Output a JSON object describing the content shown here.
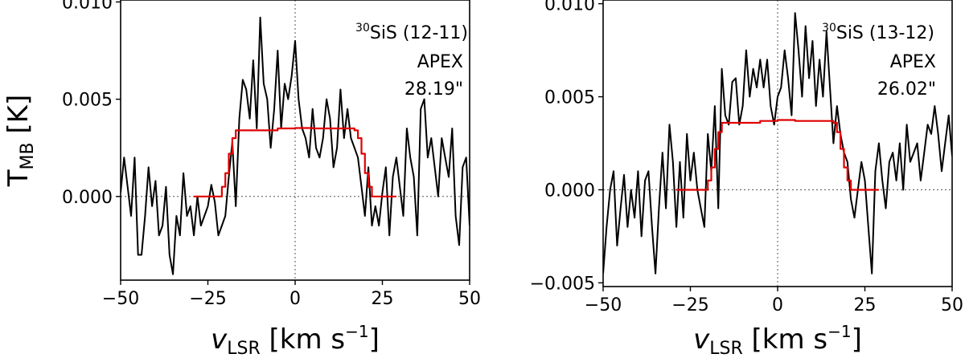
{
  "chart_data": [
    {
      "type": "line",
      "annotation": {
        "isotope": "30",
        "molecule": "SiS (12-11)",
        "telescope": "APEX",
        "beam": "28.19\""
      },
      "xlabel": {
        "main": "v",
        "sub": "LSR",
        "unit": " [km s",
        "exp": "−1",
        "close": "]"
      },
      "ylabel": {
        "main": "T",
        "sub": "MB",
        "unit": " [K]"
      },
      "xlim": [
        -50,
        50
      ],
      "ylim": [
        -0.0043,
        0.0101
      ],
      "xticks": [
        -50,
        -25,
        0,
        25,
        50
      ],
      "xtick_labels": [
        "−50",
        "−25",
        "0",
        "25",
        "50"
      ],
      "yticks": [
        0.0,
        0.005,
        0.01
      ],
      "ytick_labels": [
        "0.000",
        "0.005",
        "0.010"
      ],
      "ref_x": 0,
      "ref_y": 0,
      "series": [
        {
          "color": "#000000",
          "style": "spectrum",
          "x": [
            -50,
            -49,
            -48,
            -47,
            -46,
            -45,
            -44,
            -43,
            -42,
            -41,
            -40,
            -39,
            -38,
            -37,
            -36,
            -35,
            -34,
            -33,
            -32,
            -31,
            -30,
            -29,
            -28,
            -27,
            -26,
            -25,
            -24,
            -23,
            -22,
            -21,
            -20,
            -19,
            -18,
            -17,
            -16,
            -15,
            -14,
            -13,
            -12,
            -11,
            -10,
            -9,
            -8,
            -7,
            -6,
            -5,
            -4,
            -3,
            -2,
            -1,
            0,
            1,
            2,
            3,
            4,
            5,
            6,
            7,
            8,
            9,
            10,
            11,
            12,
            13,
            14,
            15,
            16,
            17,
            18,
            19,
            20,
            21,
            22,
            23,
            24,
            25,
            26,
            27,
            28,
            29,
            30,
            31,
            32,
            33,
            34,
            35,
            36,
            37,
            38,
            39,
            40,
            41,
            42,
            43,
            44,
            45,
            46,
            47,
            48,
            49,
            50
          ],
          "y": [
            0.0002,
            0.002,
            0.0005,
            -0.001,
            0.002,
            -0.003,
            -0.003,
            -0.001,
            0.0015,
            -0.0005,
            0.0008,
            -0.002,
            -0.0015,
            0.0005,
            -0.003,
            -0.004,
            -0.001,
            -0.002,
            0.0012,
            -0.001,
            -0.0005,
            -0.002,
            0.0,
            -0.0015,
            -0.001,
            -0.0005,
            0.0006,
            -0.0003,
            -0.002,
            -0.0015,
            -0.001,
            0.001,
            0.0028,
            -0.0005,
            0.004,
            0.006,
            0.0055,
            0.004,
            0.007,
            0.0035,
            0.0092,
            0.0058,
            0.005,
            0.0025,
            0.0045,
            0.0075,
            0.0035,
            0.0058,
            0.005,
            0.0062,
            0.008,
            0.005,
            0.0035,
            0.003,
            0.002,
            0.0045,
            0.0025,
            0.002,
            0.003,
            0.005,
            0.004,
            0.0015,
            0.0025,
            0.0055,
            0.003,
            0.0045,
            0.003,
            0.0025,
            0.002,
            0.0005,
            -0.001,
            0.0015,
            -0.0015,
            -0.0005,
            -0.0015,
            0.0002,
            0.0015,
            -0.002,
            0.001,
            0.002,
            0.0005,
            -0.001,
            0.0035,
            0.002,
            0.001,
            -0.002,
            0.0045,
            0.005,
            0.002,
            0.003,
            0.0015,
            0.0,
            0.003,
            0.002,
            0.001,
            0.0035,
            -0.001,
            -0.0025,
            0.0015,
            0.002,
            -0.0015
          ]
        },
        {
          "color": "#e00000",
          "style": "step",
          "x": [
            -29,
            -22,
            -21,
            -20,
            -19,
            -18,
            -17,
            -5,
            0,
            5,
            17,
            18,
            19,
            20,
            21,
            22,
            29
          ],
          "y": [
            0.0,
            0.0,
            0.0005,
            0.0012,
            0.0022,
            0.003,
            0.0034,
            0.0035,
            0.00352,
            0.0035,
            0.0034,
            0.003,
            0.0022,
            0.0012,
            0.0005,
            0.0,
            0.0
          ]
        }
      ]
    },
    {
      "type": "line",
      "annotation": {
        "isotope": "30",
        "molecule": "SiS (13-12)",
        "telescope": "APEX",
        "beam": "26.02\""
      },
      "xlabel": {
        "main": "v",
        "sub": "LSR",
        "unit": " [km s",
        "exp": "−1",
        "close": "]"
      },
      "ylabel": {
        "main": "",
        "sub": "",
        "unit": ""
      },
      "xlim": [
        -50,
        50
      ],
      "ylim": [
        -0.0052,
        0.0102
      ],
      "xticks": [
        -50,
        -25,
        0,
        25,
        50
      ],
      "xtick_labels": [
        "−50",
        "−25",
        "0",
        "25",
        "50"
      ],
      "yticks": [
        -0.005,
        0.0,
        0.005,
        0.01
      ],
      "ytick_labels": [
        "−0.005",
        "0.000",
        "0.005",
        "0.010"
      ],
      "ref_x": 0,
      "ref_y": 0,
      "series": [
        {
          "color": "#000000",
          "style": "spectrum",
          "x": [
            -50,
            -49,
            -48,
            -47,
            -46,
            -45,
            -44,
            -43,
            -42,
            -41,
            -40,
            -39,
            -38,
            -37,
            -36,
            -35,
            -34,
            -33,
            -32,
            -31,
            -30,
            -29,
            -28,
            -27,
            -26,
            -25,
            -24,
            -23,
            -22,
            -21,
            -20,
            -19,
            -18,
            -17,
            -16,
            -15,
            -14,
            -13,
            -12,
            -11,
            -10,
            -9,
            -8,
            -7,
            -6,
            -5,
            -4,
            -3,
            -2,
            -1,
            0,
            1,
            2,
            3,
            4,
            5,
            6,
            7,
            8,
            9,
            10,
            11,
            12,
            13,
            14,
            15,
            16,
            17,
            18,
            19,
            20,
            21,
            22,
            23,
            24,
            25,
            26,
            27,
            28,
            29,
            30,
            31,
            32,
            33,
            34,
            35,
            36,
            37,
            38,
            39,
            40,
            41,
            42,
            43,
            44,
            45,
            46,
            47,
            48,
            49,
            50
          ],
          "y": [
            -0.0045,
            -0.002,
            0.0,
            0.001,
            -0.003,
            -0.001,
            0.0008,
            -0.002,
            0.0,
            -0.0015,
            0.001,
            -0.0025,
            0.0005,
            0.001,
            -0.002,
            -0.0045,
            -0.001,
            0.002,
            -0.001,
            0.0035,
            0.0015,
            -0.002,
            0.0015,
            -0.0015,
            0.003,
            0.0005,
            0.002,
            0.0,
            -0.001,
            -0.002,
            0.003,
            0.001,
            0.0045,
            -0.001,
            0.0065,
            0.004,
            0.0035,
            0.0058,
            0.006,
            0.0035,
            0.0045,
            0.0075,
            0.005,
            0.0065,
            0.0055,
            0.007,
            0.0055,
            0.007,
            0.0045,
            0.0035,
            0.005,
            0.0055,
            0.0075,
            0.006,
            0.004,
            0.0095,
            0.0075,
            0.005,
            0.0088,
            0.006,
            0.008,
            0.0045,
            0.007,
            0.005,
            0.0085,
            0.0055,
            0.0025,
            0.0045,
            0.003,
            0.002,
            0.0015,
            -0.0005,
            -0.0015,
            0.0,
            0.0015,
            0.0005,
            -0.002,
            -0.0045,
            0.001,
            0.0025,
            0.0005,
            -0.001,
            0.0015,
            0.002,
            0.0005,
            0.0025,
            0.0,
            0.0035,
            0.0015,
            0.002,
            0.0025,
            0.0005,
            0.002,
            0.0035,
            0.003,
            0.0045,
            0.003,
            0.001,
            0.0025,
            0.004,
            0.0018
          ]
        },
        {
          "color": "#e00000",
          "style": "step",
          "x": [
            -29,
            -21,
            -20,
            -19,
            -18,
            -17,
            -16,
            -5,
            0,
            5,
            16,
            17,
            18,
            19,
            20,
            21,
            29
          ],
          "y": [
            0.0,
            0.0,
            0.0005,
            0.0012,
            0.0022,
            0.0031,
            0.0036,
            0.0037,
            0.00375,
            0.0037,
            0.0036,
            0.0031,
            0.0022,
            0.0012,
            0.0005,
            0.0,
            0.0
          ]
        }
      ]
    }
  ]
}
